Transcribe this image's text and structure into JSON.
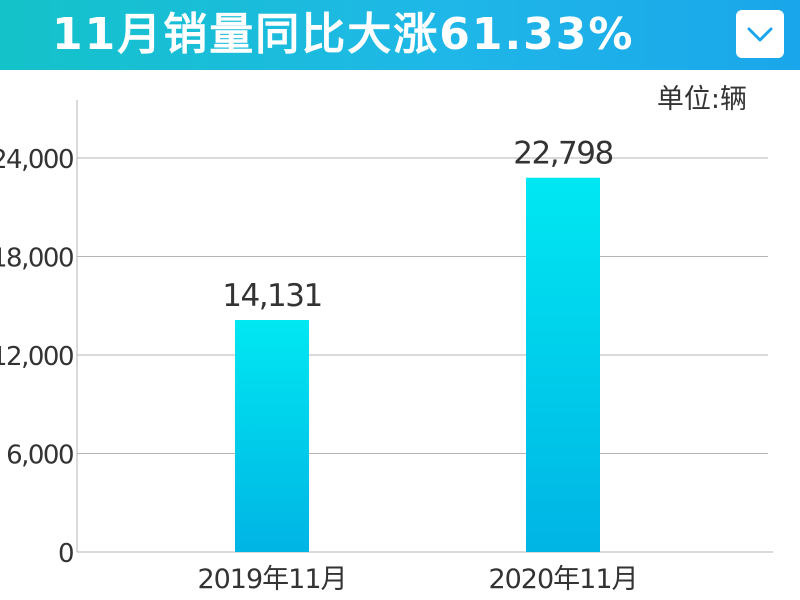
{
  "header": {
    "title": "11月销量同比大涨61.33%",
    "dropdown_icon": "chevron-down-icon"
  },
  "colors": {
    "header_start": "#14c3c9",
    "header_end": "#1aa6ea",
    "bar_top": "#00e8f2",
    "bar_bottom": "#00b4e4",
    "grid": "#b4b4b4",
    "axis_text": "#333333"
  },
  "chart_data": {
    "type": "bar",
    "title": "11月销量同比大涨61.33%",
    "unit_label": "单位:辆",
    "categories": [
      "2019年11月",
      "2020年11月"
    ],
    "values": [
      14131,
      22798
    ],
    "value_labels": [
      "14,131",
      "22,798"
    ],
    "yticks": [
      0,
      6000,
      12000,
      18000,
      24000
    ],
    "ytick_labels": [
      "0",
      "6,000",
      "12,000",
      "18,000",
      "24,000"
    ],
    "ylim": [
      0,
      24000
    ],
    "grid": true,
    "legend": "none"
  }
}
